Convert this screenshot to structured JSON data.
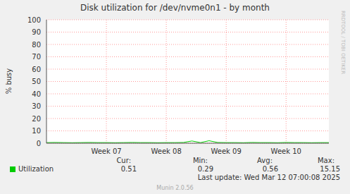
{
  "chart_data": {
    "type": "line",
    "title": "Disk utilization for /dev/nvme0n1 - by month",
    "y_label": "% busy",
    "categories": [
      null,
      null,
      null,
      null,
      null,
      null,
      null,
      "Week 07",
      null,
      null,
      null,
      null,
      null,
      null,
      "Week 08",
      null,
      null,
      null,
      null,
      null,
      null,
      "Week 09",
      null,
      null,
      null,
      null,
      null,
      null,
      "Week 10",
      null,
      null,
      null,
      null,
      null
    ],
    "series": [
      {
        "name": "Utilization",
        "color": "#00cc00",
        "values": [
          0.5,
          0.6,
          0.5,
          0.4,
          0.5,
          0.6,
          0.5,
          0.5,
          0.4,
          0.5,
          0.6,
          0.5,
          0.5,
          0.4,
          0.5,
          0.5,
          0.6,
          1.8,
          0.5,
          2.0,
          0.6,
          0.5,
          0.5,
          0.4,
          0.6,
          0.5,
          0.5,
          0.4,
          0.6,
          0.5,
          0.5,
          0.4,
          0.5,
          0.5
        ]
      }
    ],
    "ylim": [
      0,
      100
    ],
    "yticks": [
      0,
      10,
      20,
      30,
      40,
      50,
      60,
      70,
      80,
      90,
      100
    ],
    "grid": true,
    "stats": [
      {
        "label": "Cur:",
        "value": 0.51
      },
      {
        "label": "Min:",
        "value": 0.29
      },
      {
        "label": "Avg:",
        "value": 0.56
      },
      {
        "label": "Max:",
        "value": 15.15
      }
    ],
    "last_update": "Last update: Wed Mar 12 07:00:08 2025",
    "footer": "Munin 2.0.56",
    "watermark": "RRDTOOL / TOBI OETIKER"
  }
}
